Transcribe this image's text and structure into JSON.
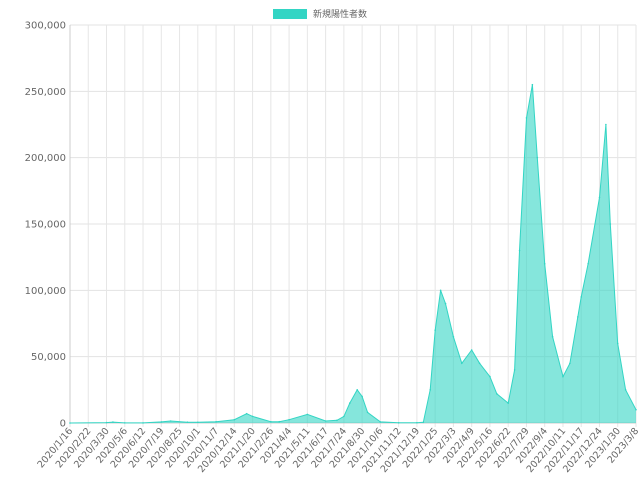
{
  "chart_data": {
    "type": "area",
    "legend": {
      "label": "新規陽性者数",
      "color": "#33d5c4",
      "position": "top"
    },
    "y_axis": {
      "min": 0,
      "max": 300000,
      "step": 50000,
      "tick_labels": [
        "0",
        "50,000",
        "100,000",
        "150,000",
        "200,000",
        "250,000",
        "300,000"
      ]
    },
    "x_axis": {
      "start": "2020/1/16",
      "end": "2023/3/8",
      "tick_labels": [
        "2020/1/16",
        "2020/2/22",
        "2020/3/30",
        "2020/5/6",
        "2020/6/12",
        "2020/7/19",
        "2020/8/25",
        "2020/10/1",
        "2020/11/7",
        "2020/12/14",
        "2021/1/20",
        "2021/2/26",
        "2021/4/4",
        "2021/5/11",
        "2021/6/17",
        "2021/7/24",
        "2021/8/30",
        "2021/10/6",
        "2021/11/12",
        "2021/12/19",
        "2022/1/25",
        "2022/3/3",
        "2022/4/9",
        "2022/5/16",
        "2022/6/22",
        "2022/7/29",
        "2022/9/4",
        "2022/10/11",
        "2022/11/17",
        "2022/12/24",
        "2023/1/30",
        "2023/3/8"
      ]
    },
    "series": [
      {
        "name": "新規陽性者数",
        "color": "#33d5c4",
        "fill": "rgba(51, 213, 196, 0.6)",
        "points": [
          [
            "2020/1/16",
            0
          ],
          [
            "2020/3/30",
            300
          ],
          [
            "2020/4/12",
            700
          ],
          [
            "2020/5/6",
            100
          ],
          [
            "2020/6/12",
            50
          ],
          [
            "2020/7/19",
            800
          ],
          [
            "2020/8/7",
            1500
          ],
          [
            "2020/9/10",
            600
          ],
          [
            "2020/10/1",
            500
          ],
          [
            "2020/11/7",
            1000
          ],
          [
            "2020/12/14",
            2500
          ],
          [
            "2021/1/8",
            7000
          ],
          [
            "2021/1/20",
            5000
          ],
          [
            "2021/2/26",
            1000
          ],
          [
            "2021/3/15",
            1000
          ],
          [
            "2021/4/4",
            2500
          ],
          [
            "2021/5/11",
            6500
          ],
          [
            "2021/6/17",
            1500
          ],
          [
            "2021/7/10",
            2000
          ],
          [
            "2021/7/24",
            5000
          ],
          [
            "2021/8/5",
            15000
          ],
          [
            "2021/8/20",
            25000
          ],
          [
            "2021/8/30",
            20000
          ],
          [
            "2021/9/10",
            8000
          ],
          [
            "2021/10/6",
            800
          ],
          [
            "2021/11/12",
            150
          ],
          [
            "2021/12/19",
            200
          ],
          [
            "2022/1/1",
            500
          ],
          [
            "2022/1/15",
            25000
          ],
          [
            "2022/1/25",
            70000
          ],
          [
            "2022/2/5",
            100000
          ],
          [
            "2022/2/15",
            90000
          ],
          [
            "2022/3/3",
            65000
          ],
          [
            "2022/3/20",
            45000
          ],
          [
            "2022/4/9",
            55000
          ],
          [
            "2022/4/25",
            45000
          ],
          [
            "2022/5/16",
            35000
          ],
          [
            "2022/5/30",
            22000
          ],
          [
            "2022/6/22",
            15000
          ],
          [
            "2022/7/5",
            40000
          ],
          [
            "2022/7/15",
            130000
          ],
          [
            "2022/7/29",
            230000
          ],
          [
            "2022/8/10",
            255000
          ],
          [
            "2022/8/20",
            200000
          ],
          [
            "2022/9/4",
            120000
          ],
          [
            "2022/9/20",
            65000
          ],
          [
            "2022/10/11",
            35000
          ],
          [
            "2022/10/25",
            45000
          ],
          [
            "2022/11/10",
            80000
          ],
          [
            "2022/11/17",
            95000
          ],
          [
            "2022/12/1",
            120000
          ],
          [
            "2022/12/24",
            170000
          ],
          [
            "2023/1/6",
            225000
          ],
          [
            "2023/1/15",
            150000
          ],
          [
            "2023/1/30",
            60000
          ],
          [
            "2023/2/15",
            25000
          ],
          [
            "2023/3/8",
            10000
          ]
        ]
      }
    ],
    "grid": true
  }
}
